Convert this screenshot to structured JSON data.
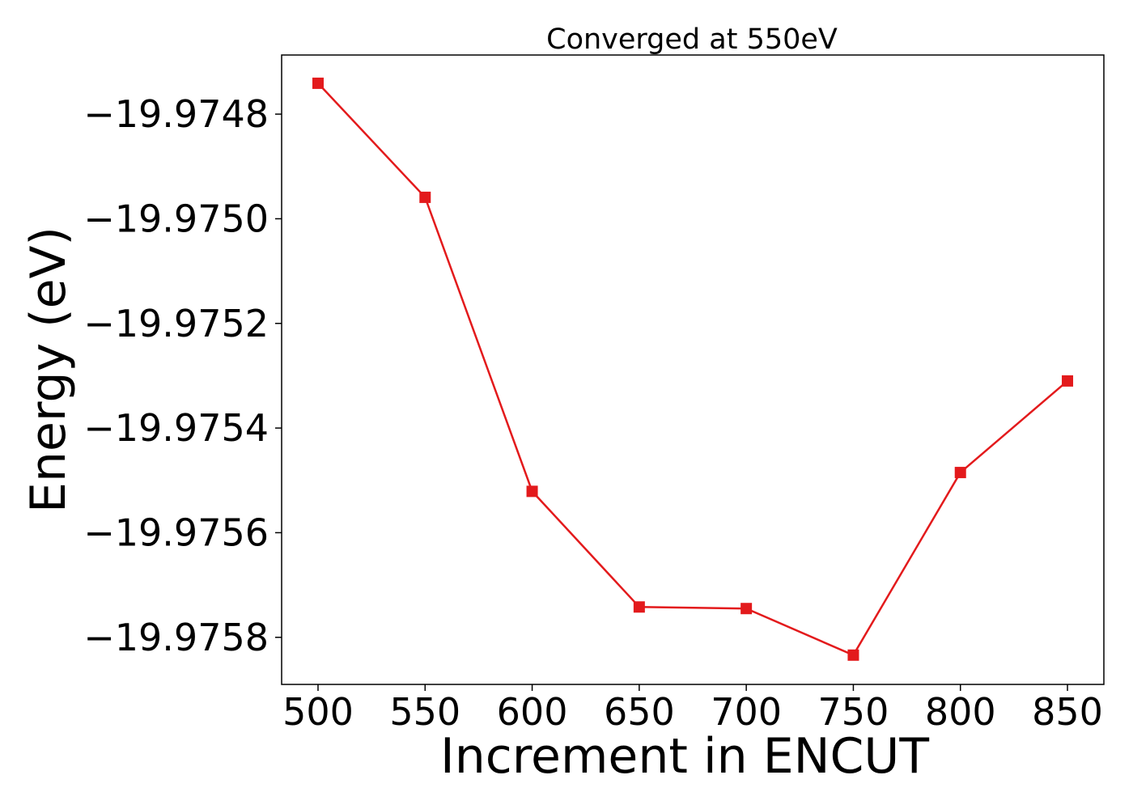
{
  "chart_data": {
    "type": "line",
    "title": "Converged at 550eV",
    "xlabel": "Increment in ENCUT",
    "ylabel": "Energy (eV)",
    "x": [
      500,
      550,
      600,
      650,
      700,
      750,
      800,
      850
    ],
    "series": [
      {
        "values": [
          -19.974741,
          -19.974959,
          -19.975521,
          -19.975742,
          -19.975745,
          -19.975834,
          -19.975485,
          -19.97531
        ],
        "color": "#e31a1c",
        "marker": "square"
      }
    ],
    "xticks": [
      500,
      550,
      600,
      650,
      700,
      750,
      800,
      850
    ],
    "xtick_labels": [
      "500",
      "550",
      "600",
      "650",
      "700",
      "750",
      "800",
      "850"
    ],
    "yticks": [
      -19.9748,
      -19.975,
      -19.9752,
      -19.9754,
      -19.9756,
      -19.9758
    ],
    "ytick_labels": [
      "−19.9748",
      "−19.9750",
      "−19.9752",
      "−19.9754",
      "−19.9756",
      "−19.9758"
    ],
    "xlim": [
      483,
      867
    ],
    "ylim": [
      -19.97589,
      -19.974687
    ],
    "grid": false,
    "legend": "none"
  }
}
